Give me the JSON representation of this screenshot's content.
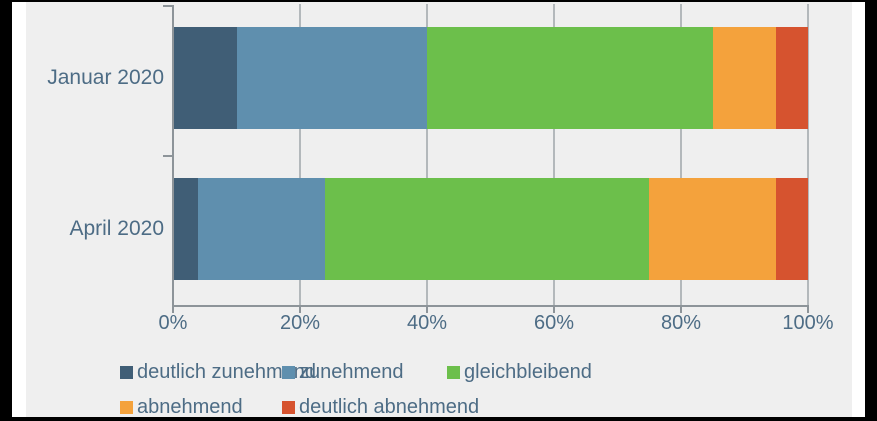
{
  "chart_data": {
    "type": "bar",
    "orientation": "horizontal",
    "stacked": true,
    "unit": "%",
    "categories": [
      "Januar 2020",
      "April 2020"
    ],
    "series": [
      {
        "name": "deutlich zunehmend",
        "color": "#405e76",
        "values": [
          10,
          4
        ]
      },
      {
        "name": "zunehmend",
        "color": "#5f8fae",
        "values": [
          30,
          20
        ]
      },
      {
        "name": "gleichbleibend",
        "color": "#6cbf4b",
        "values": [
          45,
          51
        ]
      },
      {
        "name": "abnehmend",
        "color": "#f4a23c",
        "values": [
          10,
          20
        ]
      },
      {
        "name": "deutlich abnehmend",
        "color": "#d6532f",
        "values": [
          5,
          5
        ]
      }
    ],
    "x_ticks": [
      "0%",
      "20%",
      "40%",
      "60%",
      "80%",
      "100%"
    ],
    "xlim": [
      0,
      100
    ],
    "grid": true,
    "legend_position": "bottom"
  },
  "ui_colors": {
    "text": "#4d6c85",
    "gridline": "#b3b8bb",
    "axis": "#8d9499",
    "panel_background": "#efefef",
    "card_background": "#ffffff",
    "outer_background": "#000000"
  }
}
